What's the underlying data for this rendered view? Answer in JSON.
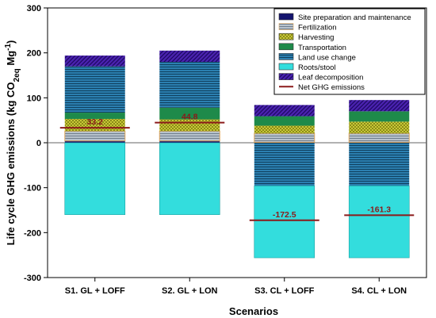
{
  "chart_data": {
    "type": "bar",
    "stacked": true,
    "title": "",
    "xlabel": "Scenarios",
    "ylabel": "Life cycle GHG emissions (kg CO2eq Mg-1)",
    "ylabel_parts": {
      "main": "Life cycle GHG emissions (kg CO",
      "sub": "2eq",
      "mid": " Mg",
      "sup": "-1",
      "end": ")"
    },
    "ylim": [
      -300,
      300
    ],
    "yticks": [
      -300,
      -200,
      -100,
      0,
      100,
      200,
      300
    ],
    "grid": false,
    "legend_position": "top-right",
    "categories": [
      "S1. GL + LOFF",
      "S2. GL + LON",
      "S3. CL + LOFF",
      "S4. CL + LON"
    ],
    "series": [
      {
        "name": "Site preparation and maintenance",
        "values": [
          4,
          4,
          1,
          1
        ],
        "color": "#14146e",
        "pattern": "solid"
      },
      {
        "name": "Fertilization",
        "values": [
          22,
          22,
          20,
          20
        ],
        "color": "#9aa9b8",
        "border": "#e0a860",
        "pattern": "hlines"
      },
      {
        "name": "Harvesting",
        "values": [
          27,
          26,
          17,
          26
        ],
        "color": "#c8c832",
        "pattern": "cross"
      },
      {
        "name": "Transportation",
        "values": [
          14,
          26,
          21,
          23
        ],
        "color": "#1e8a4a",
        "pattern": "solid"
      },
      {
        "name": "Land use change",
        "values": [
          103,
          102,
          0,
          0
        ],
        "color": "#1f6e99",
        "pattern": "hlines"
      },
      {
        "name": "Roots/stool",
        "values": [
          -160,
          -160,
          -160,
          -160
        ],
        "color": "#33dddd",
        "pattern": "solid"
      },
      {
        "name": "Leaf decomposition",
        "values": [
          24,
          25,
          25,
          25
        ],
        "color": "#3a1599",
        "pattern": "diag"
      }
    ],
    "land_use_change_negative": [
      0,
      0,
      -96,
      -96
    ],
    "net_ghg": {
      "name": "Net GHG emissions",
      "values": [
        33.2,
        44.8,
        -172.5,
        -161.3
      ],
      "labels": [
        "33.2",
        "44.8",
        "-172.5",
        "-161.3"
      ],
      "color": "#8B1A1A"
    }
  }
}
